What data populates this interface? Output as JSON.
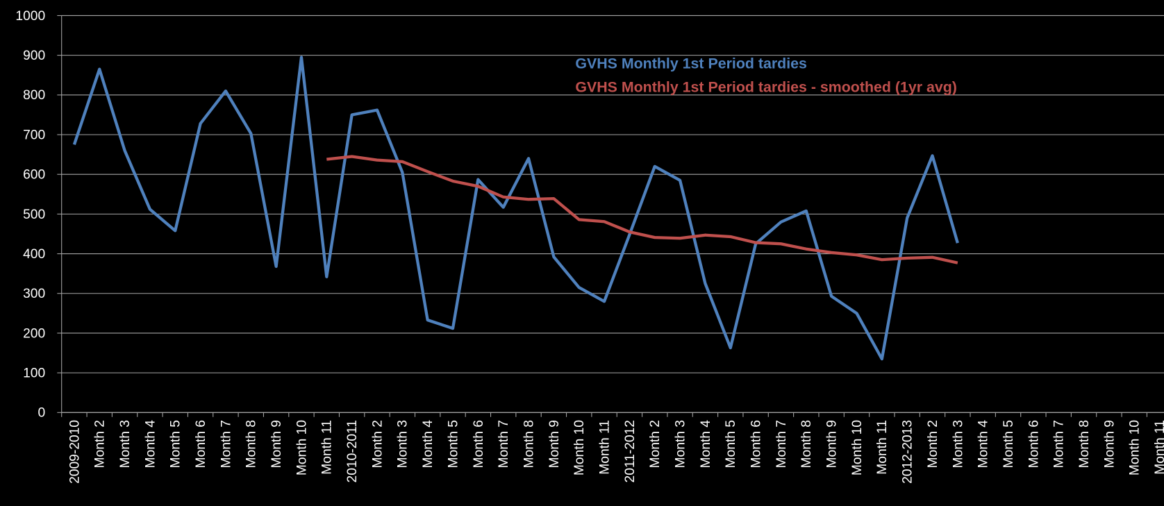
{
  "chart_data": {
    "type": "line",
    "categories": [
      "2009-2010",
      "Month 2",
      "Month 3",
      "Month 4",
      "Month 5",
      "Month 6",
      "Month 7",
      "Month 8",
      "Month 9",
      "Month 10",
      "Month 11",
      "2010-2011",
      "Month 2",
      "Month 3",
      "Month 4",
      "Month 5",
      "Month 6",
      "Month 7",
      "Month 8",
      "Month 9",
      "Month 10",
      "Month 11",
      "2011-2012",
      "Month 2",
      "Month 3",
      "Month 4",
      "Month 5",
      "Month 6",
      "Month 7",
      "Month 8",
      "Month 9",
      "Month 10",
      "Month 11",
      "2012-2013",
      "Month 2",
      "Month 3",
      "Month 4",
      "Month 5",
      "Month 6",
      "Month 7",
      "Month 8",
      "Month 9",
      "Month 10",
      "Month 11"
    ],
    "series": [
      {
        "name": "GVHS Monthly 1st Period tardies",
        "color": "#4f81bd",
        "values": [
          675,
          865,
          660,
          512,
          458,
          728,
          810,
          703,
          368,
          895,
          342,
          750,
          762,
          605,
          233,
          212,
          587,
          517,
          640,
          392,
          315,
          280,
          448,
          620,
          585,
          325,
          163,
          425,
          480,
          508,
          293,
          250,
          135,
          490,
          647,
          427,
          null,
          null,
          null,
          null,
          null,
          null,
          null,
          null
        ]
      },
      {
        "name": "GVHS Monthly 1st Period tardies - smoothed (1yr avg)",
        "color": "#c0504d",
        "values": [
          null,
          null,
          null,
          null,
          null,
          null,
          null,
          null,
          null,
          null,
          638,
          645,
          636,
          632,
          607,
          583,
          570,
          543,
          537,
          539,
          486,
          481,
          455,
          441,
          439,
          447,
          443,
          428,
          425,
          412,
          403,
          397,
          385,
          389,
          391,
          377,
          null,
          null,
          null,
          null,
          null,
          null,
          null,
          null
        ]
      }
    ],
    "ylim": [
      0,
      1000
    ],
    "yticks": [
      0,
      100,
      200,
      300,
      400,
      500,
      600,
      700,
      800,
      900,
      1000
    ],
    "grid": true
  }
}
